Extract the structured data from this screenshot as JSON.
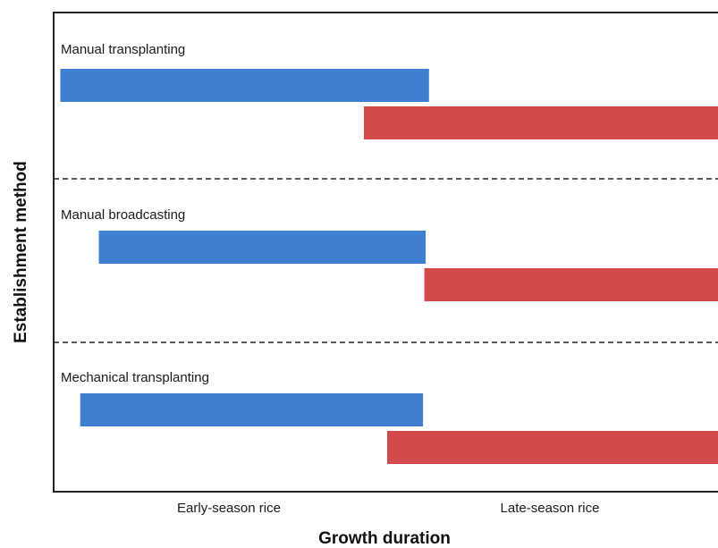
{
  "chart_data": {
    "type": "bar",
    "orientation": "horizontal",
    "xlabel": "Growth duration",
    "ylabel": "Establishment method",
    "x_tick_labels": [
      "Early-season rice",
      "Late-season rice"
    ],
    "colors": {
      "early": "#3f7fcf",
      "late": "#d24a4a",
      "frame": "#222222",
      "divider": "#222222"
    },
    "grid": false,
    "dividers": "dashed lines between groups",
    "groups": [
      {
        "name": "Manual transplanting",
        "bars": [
          {
            "series": "early",
            "start": 0.01,
            "end": 0.565
          },
          {
            "series": "late",
            "start": 0.467,
            "end": 1.0
          }
        ]
      },
      {
        "name": "Manual broadcasting",
        "bars": [
          {
            "series": "early",
            "start": 0.068,
            "end": 0.56
          },
          {
            "series": "late",
            "start": 0.558,
            "end": 1.0
          }
        ]
      },
      {
        "name": "Mechanical transplanting",
        "bars": [
          {
            "series": "early",
            "start": 0.04,
            "end": 0.556
          },
          {
            "series": "late",
            "start": 0.502,
            "end": 1.0
          }
        ]
      }
    ]
  }
}
